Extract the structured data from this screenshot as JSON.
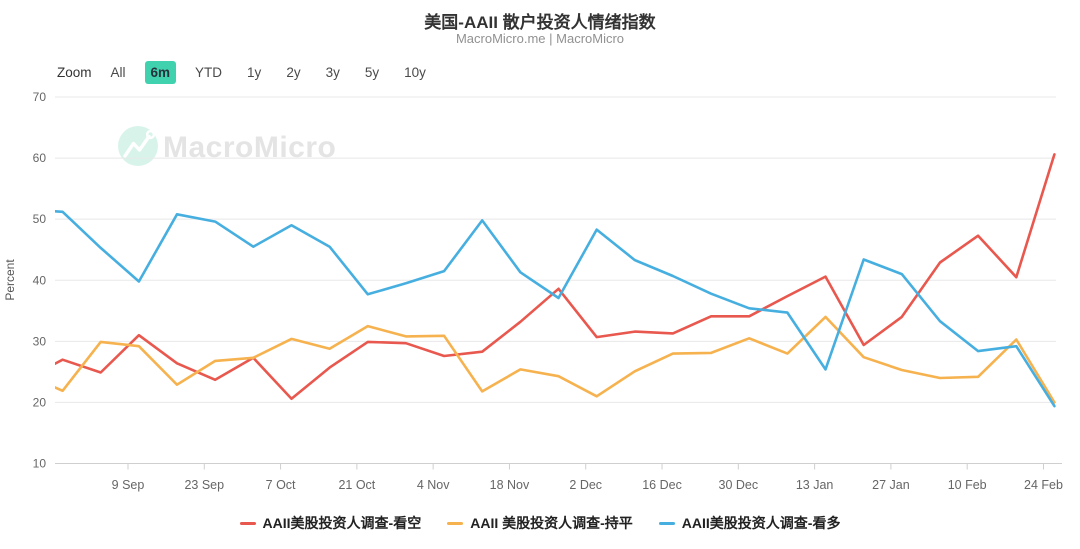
{
  "header": {
    "title": "美国-AAII 散户投资人情绪指数",
    "subtitle": "MacroMicro.me | MacroMicro"
  },
  "toolbar": {
    "label": "Zoom",
    "buttons": [
      "All",
      "6m",
      "YTD",
      "1y",
      "2y",
      "3y",
      "5y",
      "10y"
    ],
    "active": "6m",
    "active_bg": "#40D2AE"
  },
  "watermark": {
    "text": "MacroMicro",
    "icon": "macromicro-mountain-logo",
    "circle_color": "#D8F4EA",
    "text_color": "#E4E4E4"
  },
  "chart_data": {
    "type": "line",
    "title": "美国-AAII 散户投资人情绪指数",
    "subtitle": "MacroMicro.me | MacroMicro",
    "ylabel": "Percent",
    "xlabel": "",
    "ylim": [
      10,
      70
    ],
    "yticks": [
      10,
      20,
      30,
      40,
      50,
      60,
      70
    ],
    "xticklabels": [
      "9 Sep",
      "23 Sep",
      "7 Oct",
      "21 Oct",
      "4 Nov",
      "18 Nov",
      "2 Dec",
      "16 Dec",
      "30 Dec",
      "13 Jan",
      "27 Jan",
      "10 Feb",
      "24 Feb"
    ],
    "x": [
      "21 Aug",
      "28 Aug",
      "4 Sep",
      "11 Sep",
      "18 Sep",
      "25 Sep",
      "2 Oct",
      "9 Oct",
      "16 Oct",
      "23 Oct",
      "30 Oct",
      "6 Nov",
      "13 Nov",
      "20 Nov",
      "27 Nov",
      "4 Dec",
      "11 Dec",
      "18 Dec",
      "25 Dec",
      "1 Jan",
      "8 Jan",
      "15 Jan",
      "22 Jan",
      "29 Jan",
      "5 Feb",
      "12 Feb",
      "19 Feb",
      "26 Feb"
    ],
    "series": [
      {
        "name": "AAII美股投资人调查-看空",
        "color": "#E8584E",
        "values": [
          23.7,
          27.0,
          24.9,
          31.0,
          26.4,
          23.7,
          27.3,
          20.6,
          25.7,
          29.9,
          29.7,
          27.6,
          28.3,
          33.2,
          38.6,
          30.7,
          31.6,
          31.3,
          34.1,
          34.1,
          37.4,
          40.6,
          29.4,
          34.0,
          42.9,
          47.3,
          40.5,
          60.6
        ]
      },
      {
        "name": "AAII 美股投资人调查-持平",
        "color": "#F6B24E",
        "values": [
          24.7,
          21.9,
          29.9,
          29.2,
          22.9,
          26.8,
          27.3,
          30.4,
          28.8,
          32.5,
          30.8,
          30.9,
          21.8,
          25.4,
          24.3,
          21.0,
          25.1,
          28.0,
          28.1,
          30.5,
          28.0,
          34.0,
          27.4,
          25.3,
          24.0,
          24.2,
          30.3,
          20.0
        ]
      },
      {
        "name": "AAII美股投资人调查-看多",
        "color": "#46AFE0",
        "values": [
          51.6,
          51.2,
          45.3,
          39.8,
          50.8,
          49.6,
          45.5,
          49.0,
          45.5,
          37.7,
          39.5,
          41.5,
          49.8,
          41.3,
          37.1,
          48.3,
          43.3,
          40.7,
          37.8,
          35.4,
          34.7,
          25.4,
          43.4,
          41.0,
          33.3,
          28.4,
          29.2,
          19.4
        ]
      }
    ],
    "layout": {
      "grid": true,
      "grid_color": "#E8E8E8",
      "axis_color": "#CFCFCF",
      "tick_label_color": "#666666",
      "legend_position": "bottom",
      "first_point_clipped_at_left_edge": true
    }
  }
}
